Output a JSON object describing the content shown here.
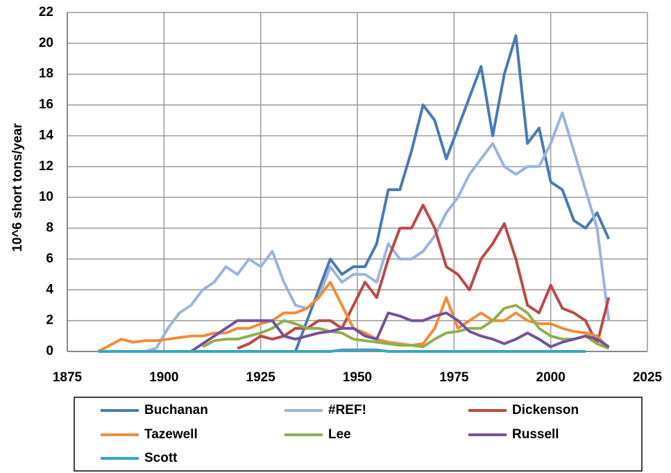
{
  "chart_data": {
    "type": "line",
    "y_label": "10^6 short tons/year",
    "xlim": [
      1875,
      2025
    ],
    "xticks": [
      1875,
      1900,
      1925,
      1950,
      1975,
      2000,
      2025
    ],
    "ylim": [
      0,
      22
    ],
    "yticks": [
      0,
      2,
      4,
      6,
      8,
      10,
      12,
      14,
      16,
      18,
      20,
      22
    ],
    "grid": true,
    "legend": "bottom",
    "x": [
      1883,
      1886,
      1889,
      1892,
      1895,
      1898,
      1901,
      1904,
      1907,
      1910,
      1913,
      1916,
      1919,
      1922,
      1925,
      1928,
      1931,
      1934,
      1937,
      1940,
      1943,
      1946,
      1949,
      1952,
      1955,
      1958,
      1961,
      1964,
      1967,
      1970,
      1973,
      1976,
      1979,
      1982,
      1985,
      1988,
      1991,
      1994,
      1997,
      2000,
      2003,
      2006,
      2009,
      2012,
      2015
    ],
    "series": [
      {
        "name": "Buchanan",
        "color": "#4a7ab5",
        "values": [
          null,
          null,
          null,
          null,
          null,
          null,
          null,
          null,
          null,
          null,
          null,
          null,
          null,
          null,
          null,
          null,
          null,
          0,
          2,
          4,
          6,
          5,
          5.5,
          5.5,
          7,
          10.5,
          10.5,
          13,
          16,
          15,
          12.5,
          14.5,
          16.5,
          18.5,
          14,
          18,
          20.5,
          13.5,
          14.5,
          11,
          10.5,
          8.5,
          8,
          9,
          7.3
        ]
      },
      {
        "name": "#REF!",
        "color": "#9bb5dc",
        "values": [
          null,
          null,
          null,
          null,
          0,
          0.2,
          1.5,
          2.5,
          3,
          4,
          4.5,
          5.5,
          5,
          6,
          5.5,
          6.5,
          4.5,
          3,
          2.8,
          3.5,
          5.5,
          4.5,
          5,
          5,
          4.5,
          7,
          6,
          6,
          6.5,
          7.5,
          9,
          10,
          11.5,
          12.5,
          13.5,
          12,
          11.5,
          12,
          12,
          13.5,
          15.5,
          13,
          10.5,
          8,
          2
        ]
      },
      {
        "name": "Dickenson",
        "color": "#b84a47",
        "values": [
          null,
          null,
          null,
          null,
          null,
          null,
          null,
          null,
          null,
          null,
          null,
          null,
          0.2,
          0.5,
          1,
          0.8,
          1,
          1.5,
          1.5,
          2,
          2,
          1.5,
          3,
          4.5,
          3.5,
          6,
          8,
          8,
          9.5,
          8,
          5.5,
          5,
          4,
          6,
          7,
          8.3,
          6,
          3,
          2.5,
          4.3,
          2.8,
          2.5,
          2,
          0.5,
          3.5
        ]
      },
      {
        "name": "Tazewell",
        "color": "#f08c3a",
        "values": [
          0,
          0.4,
          0.8,
          0.6,
          0.7,
          0.7,
          0.8,
          0.9,
          1,
          1,
          1.2,
          1.2,
          1.5,
          1.5,
          1.8,
          2,
          2.5,
          2.5,
          2.8,
          3.5,
          4.5,
          3,
          1.5,
          1.2,
          0.8,
          0.6,
          0.5,
          0.4,
          0.5,
          1.5,
          3.5,
          1.5,
          2,
          2.5,
          2,
          2,
          2.5,
          2,
          1.8,
          1.8,
          1.5,
          1.3,
          1.2,
          1,
          0.2
        ]
      },
      {
        "name": "Lee",
        "color": "#8db04f",
        "values": [
          null,
          null,
          null,
          null,
          null,
          null,
          null,
          null,
          null,
          0.3,
          0.7,
          0.8,
          0.8,
          1,
          1.2,
          1.5,
          2,
          1.8,
          1.5,
          1.5,
          1.3,
          1.2,
          0.8,
          0.7,
          0.6,
          0.5,
          0.4,
          0.4,
          0.3,
          0.8,
          1.2,
          1.3,
          1.5,
          1.5,
          2,
          2.8,
          3,
          2.5,
          1.5,
          1,
          0.8,
          0.8,
          1,
          0.5,
          0.2
        ]
      },
      {
        "name": "Russell",
        "color": "#74519a",
        "values": [
          null,
          null,
          null,
          null,
          null,
          null,
          null,
          null,
          0,
          0.5,
          1,
          1.5,
          2,
          2,
          2,
          2,
          1,
          0.8,
          1,
          1.2,
          1.3,
          1.5,
          1.5,
          1,
          0.8,
          2.5,
          2.3,
          2,
          2,
          2.3,
          2.5,
          2,
          1.3,
          1,
          0.8,
          0.5,
          0.8,
          1.2,
          0.8,
          0.3,
          0.6,
          0.8,
          1,
          0.8,
          0.3
        ]
      },
      {
        "name": "Scott",
        "color": "#3aa6bf",
        "values": [
          0,
          0,
          0,
          0,
          0,
          0,
          0,
          0,
          0,
          0,
          0,
          0,
          0,
          0,
          0,
          0,
          0,
          0,
          0,
          0,
          0,
          0.1,
          0.1,
          0.1,
          0.1,
          0,
          0,
          0,
          0,
          0,
          0,
          0,
          0,
          0,
          0,
          0,
          0,
          0,
          0,
          0,
          0,
          0,
          0,
          null,
          null
        ]
      }
    ]
  }
}
